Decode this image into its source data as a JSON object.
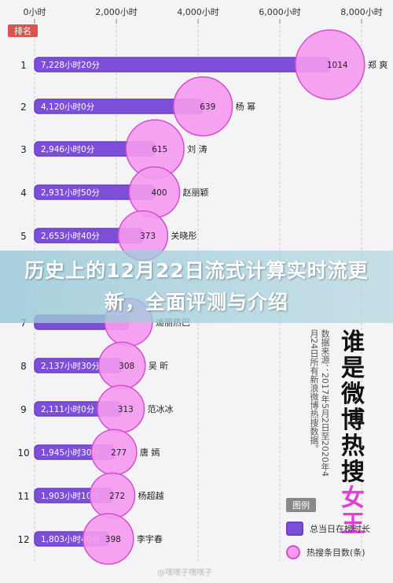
{
  "chart_data": {
    "type": "bar",
    "x_ticks": [
      "0小时",
      "2,000小时",
      "4,000小时",
      "6,000小时",
      "8,000小时"
    ],
    "x_tick_values": [
      0,
      2000,
      4000,
      6000,
      8000
    ],
    "xlim": [
      0,
      8000
    ],
    "rank_header": "排名",
    "rows": [
      {
        "rank": "1",
        "bar_label": "7,228小时20分",
        "hours": 7228.3,
        "count": 1014,
        "count_label": "1014",
        "name": "郑 爽"
      },
      {
        "rank": "2",
        "bar_label": "4,120小时0分",
        "hours": 4120,
        "count": 639,
        "count_label": "639",
        "name": "杨 幂"
      },
      {
        "rank": "3",
        "bar_label": "2,946小时0分",
        "hours": 2946,
        "count": 615,
        "count_label": "615",
        "name": "刘 涛"
      },
      {
        "rank": "4",
        "bar_label": "2,931小时50分",
        "hours": 2931.8,
        "count": 400,
        "count_label": "400",
        "name": "赵丽颖"
      },
      {
        "rank": "5",
        "bar_label": "2,653小时40分",
        "hours": 2653.7,
        "count": 373,
        "count_label": "373",
        "name": "关晓彤"
      },
      {
        "rank": "7",
        "bar_label": "",
        "hours": 2300,
        "count": 330,
        "count_label": "",
        "name": "迪丽热巴"
      },
      {
        "rank": "8",
        "bar_label": "2,137小时30分",
        "hours": 2137.5,
        "count": 308,
        "count_label": "308",
        "name": "吴 昕"
      },
      {
        "rank": "9",
        "bar_label": "2,111小时0分",
        "hours": 2111,
        "count": 313,
        "count_label": "313",
        "name": "范冰冰"
      },
      {
        "rank": "10",
        "bar_label": "1,945小时30分",
        "hours": 1945.5,
        "count": 277,
        "count_label": "277",
        "name": "唐 嫣"
      },
      {
        "rank": "11",
        "bar_label": "1,903小时10分",
        "hours": 1903.2,
        "count": 272,
        "count_label": "272",
        "name": "杨超越"
      },
      {
        "rank": "12",
        "bar_label": "1,803小时40分",
        "hours": 1803.7,
        "count": 398,
        "count_label": "398",
        "name": "李宇春"
      }
    ],
    "legend": {
      "title": "图例",
      "items": [
        "总当日在榜时长",
        "热搜条目数(条)"
      ]
    },
    "colors": {
      "bar": "#7d4fd8",
      "bar_border": "#6a3fc4",
      "circle": "#f59af0",
      "circle_border": "#d34fd0"
    }
  },
  "banner": {
    "title": "历史上的12月22日流式计算实时流更新，全面评测与介绍"
  },
  "side_title": {
    "line1": "谁是微博热搜",
    "line2": "女王"
  },
  "source_note": "数据来源：2017年5月2日至2020年4月24日所有新浪微博热搜数据。",
  "watermark": "@嘿嘿子嘿嘿子"
}
